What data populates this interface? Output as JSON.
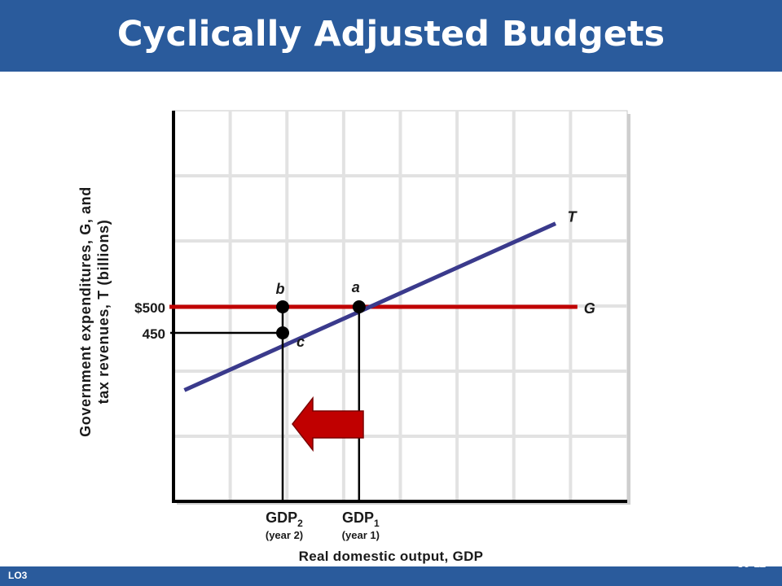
{
  "slide": {
    "title": "Cyclically Adjusted Budgets",
    "lo_label": "LO3",
    "slide_number": "30-11",
    "header_color": "#2a5b9c"
  },
  "chart_data": {
    "type": "line",
    "title": "",
    "xlabel": "Real domestic output, GDP",
    "ylabel_lines": [
      "Government expenditures, G, and",
      "tax revenues, T (billions)"
    ],
    "x_ticks": [
      {
        "key": "gdp2",
        "label": "GDP",
        "sub": "2",
        "note": "(year 2)",
        "x": 2
      },
      {
        "key": "gdp1",
        "label": "GDP",
        "sub": "1",
        "note": "(year 1)",
        "x": 3.4
      }
    ],
    "y_ticks": [
      {
        "label": "$500",
        "value": 500
      },
      {
        "label": "450",
        "value": 450
      }
    ],
    "xlim": [
      0,
      8
    ],
    "ylim": [
      300,
      700
    ],
    "grid": true,
    "series": [
      {
        "name": "G",
        "color": "#c00000",
        "points": [
          [
            0,
            500
          ],
          [
            7.4,
            500
          ]
        ]
      },
      {
        "name": "T",
        "color": "#3a3a8c",
        "points": [
          [
            0.2,
            340
          ],
          [
            7.0,
            660
          ]
        ]
      }
    ],
    "points": [
      {
        "label": "a",
        "x": 3.4,
        "y": 500
      },
      {
        "label": "b",
        "x": 2,
        "y": 500
      },
      {
        "label": "c",
        "x": 2,
        "y": 450
      }
    ],
    "annotation": {
      "type": "arrow",
      "direction": "left",
      "color": "#c00000"
    }
  }
}
